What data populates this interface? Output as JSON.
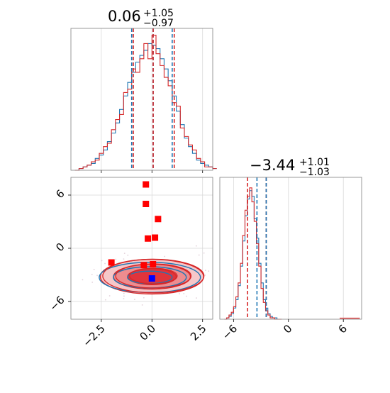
{
  "chart_data": [
    {
      "panel": "top-left",
      "type": "histogram",
      "title": {
        "value": "0.06",
        "upper": "+1.05",
        "lower": "−0.97"
      },
      "xlim": [
        -4.0,
        3.0
      ],
      "grid": true,
      "quantile_lines": {
        "blue": [
          -1.0,
          0.06,
          1.0
        ],
        "red": [
          -0.92,
          0.06,
          1.1
        ]
      },
      "series": [
        {
          "color": "#1f77b4",
          "bin_start": -3.8,
          "bin_width": 0.2,
          "values": [
            0,
            1,
            2,
            3,
            4,
            7,
            9,
            12,
            17,
            22,
            28,
            36,
            44,
            52,
            58,
            64,
            68,
            71,
            75,
            74,
            72,
            66,
            60,
            53,
            44,
            35,
            27,
            19,
            14,
            10,
            6,
            4,
            3,
            2,
            1
          ]
        },
        {
          "color": "#d62728",
          "bin_start": -3.8,
          "bin_width": 0.2,
          "values": [
            0,
            1,
            2,
            3,
            5,
            6,
            10,
            14,
            16,
            24,
            30,
            33,
            46,
            48,
            60,
            58,
            66,
            75,
            66,
            80,
            69,
            62,
            55,
            50,
            40,
            38,
            25,
            20,
            15,
            12,
            7,
            5,
            2,
            2,
            1
          ]
        }
      ]
    },
    {
      "panel": "bottom-right",
      "type": "histogram",
      "title": {
        "value": "−3.44",
        "upper": "+1.01",
        "lower": "−1.03"
      },
      "xlim": [
        -7.5,
        8.0
      ],
      "xticks": [
        "−6",
        "0",
        "6"
      ],
      "grid": true,
      "quantile_lines": {
        "red": [
          -4.47,
          -2.43
        ],
        "blue": [
          -3.44,
          -2.43
        ]
      },
      "series": [
        {
          "color": "#1f77b4",
          "bin_start": -7.0,
          "bin_width": 0.25,
          "values": [
            0,
            1,
            2,
            4,
            8,
            14,
            24,
            38,
            56,
            74,
            86,
            92,
            88,
            72,
            58,
            40,
            26,
            14,
            8,
            4,
            2,
            1,
            1,
            0,
            0
          ]
        },
        {
          "color": "#d62728",
          "bin_start": -7.0,
          "bin_width": 0.25,
          "values": [
            0,
            1,
            3,
            5,
            9,
            16,
            26,
            40,
            60,
            78,
            88,
            94,
            84,
            70,
            54,
            38,
            22,
            12,
            6,
            3,
            1,
            1,
            0,
            0,
            0
          ]
        }
      ]
    },
    {
      "panel": "bottom-left",
      "type": "scatter",
      "xlim": [
        -4.0,
        3.0
      ],
      "ylim": [
        -8.0,
        8.0
      ],
      "xticks": [
        "−2.5",
        "0.0",
        "2.5"
      ],
      "yticks": [
        "6",
        "0",
        "−6"
      ],
      "grid": true,
      "markers": {
        "red": [
          [
            -0.3,
            7.2
          ],
          [
            -0.3,
            5.0
          ],
          [
            0.3,
            3.3
          ],
          [
            0.15,
            1.2
          ],
          [
            -0.2,
            1.1
          ],
          [
            -2.0,
            -1.6
          ],
          [
            -0.4,
            -1.9
          ],
          [
            0.05,
            -1.8
          ]
        ],
        "blue": [
          [
            0.0,
            -3.4
          ]
        ]
      },
      "contours": {
        "center": [
          0.0,
          -3.2
        ],
        "red_rx": [
          2.55,
          1.9,
          1.2
        ],
        "red_ry": [
          1.95,
          1.4,
          0.9
        ],
        "blue_rx": [
          2.5,
          1.8,
          1.1
        ],
        "blue_ry": [
          1.7,
          1.2,
          0.7
        ]
      }
    }
  ]
}
